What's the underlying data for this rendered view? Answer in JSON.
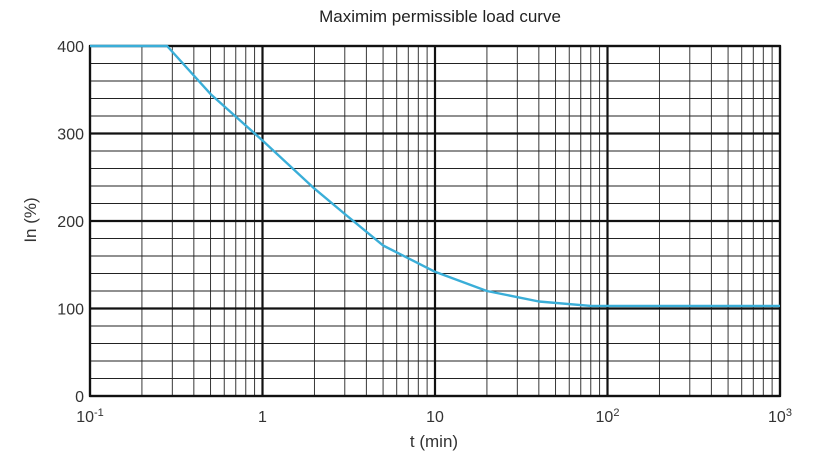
{
  "chart_data": {
    "type": "line",
    "title": "Maximim permissible load  curve",
    "xlabel": "t (min)",
    "ylabel": "In (%)",
    "x_scale": "log",
    "xlim": [
      0.1,
      1000
    ],
    "ylim": [
      0,
      400
    ],
    "x_ticks": [
      {
        "value": 0.1,
        "base": "10",
        "exp": "-1"
      },
      {
        "value": 1,
        "base": "1",
        "exp": ""
      },
      {
        "value": 10,
        "base": "10",
        "exp": ""
      },
      {
        "value": 100,
        "base": "10",
        "exp": "2"
      },
      {
        "value": 1000,
        "base": "10",
        "exp": "3"
      }
    ],
    "y_ticks": [
      "0",
      "100",
      "200",
      "300",
      "400"
    ],
    "grid": true,
    "series": [
      {
        "color": "#3aaed8",
        "x": [
          0.1,
          0.28,
          0.5,
          1,
          2,
          3,
          5,
          10,
          20,
          40,
          80,
          200,
          1000
        ],
        "y": [
          400,
          400,
          345,
          292,
          237,
          208,
          172,
          142,
          120,
          108,
          103,
          103,
          103
        ]
      }
    ]
  }
}
